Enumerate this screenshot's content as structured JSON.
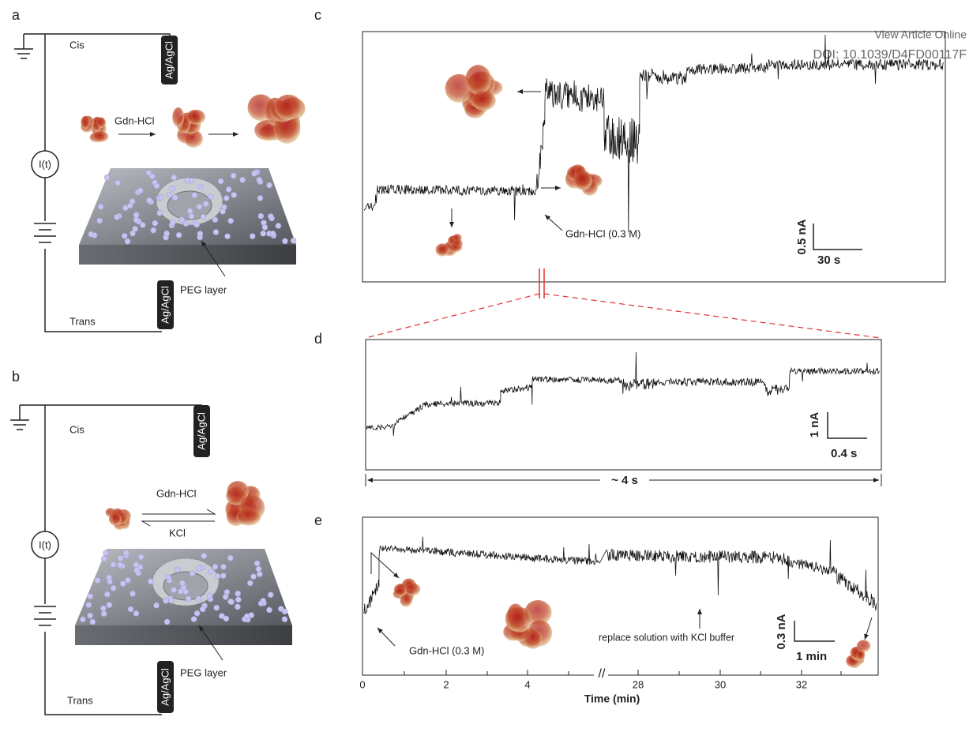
{
  "header": {
    "view_online": "View Article Online",
    "doi": "DOI: 10.1039/D4FD00117F"
  },
  "panel_a": {
    "label": "a",
    "cis": "Cis",
    "electrode_top": "Ag/AgCl",
    "reagent": "Gdn-HCl",
    "current": "I(t)",
    "layer": "PEG layer",
    "electrode_bottom": "Ag/AgCl",
    "trans": "Trans"
  },
  "panel_b": {
    "label": "b",
    "cis": "Cis",
    "electrode_top": "Ag/AgCl",
    "reagent": "Gdn-HCl",
    "reverse_reagent": "KCl",
    "current": "I(t)",
    "layer": "PEG layer",
    "electrode_bottom": "Ag/AgCl",
    "trans": "Trans"
  },
  "panel_c": {
    "label": "c",
    "annotation": "Gdn-HCl (0.3 M)",
    "scale_y": "0.5 nA",
    "scale_x": "30 s"
  },
  "panel_d": {
    "label": "d",
    "scale_y": "1 nA",
    "scale_x": "0.4 s",
    "span": "~ 4 s"
  },
  "panel_e": {
    "label": "e",
    "annotation": "Gdn-HCl (0.3 M)",
    "annotation2": "replace solution with KCl buffer",
    "scale_y": "0.3 nA",
    "scale_x": "1 min",
    "x_ticks": [
      "0",
      "2",
      "4",
      "28",
      "30",
      "32"
    ],
    "x_label": "Time (min)",
    "axis_break": "//"
  }
}
